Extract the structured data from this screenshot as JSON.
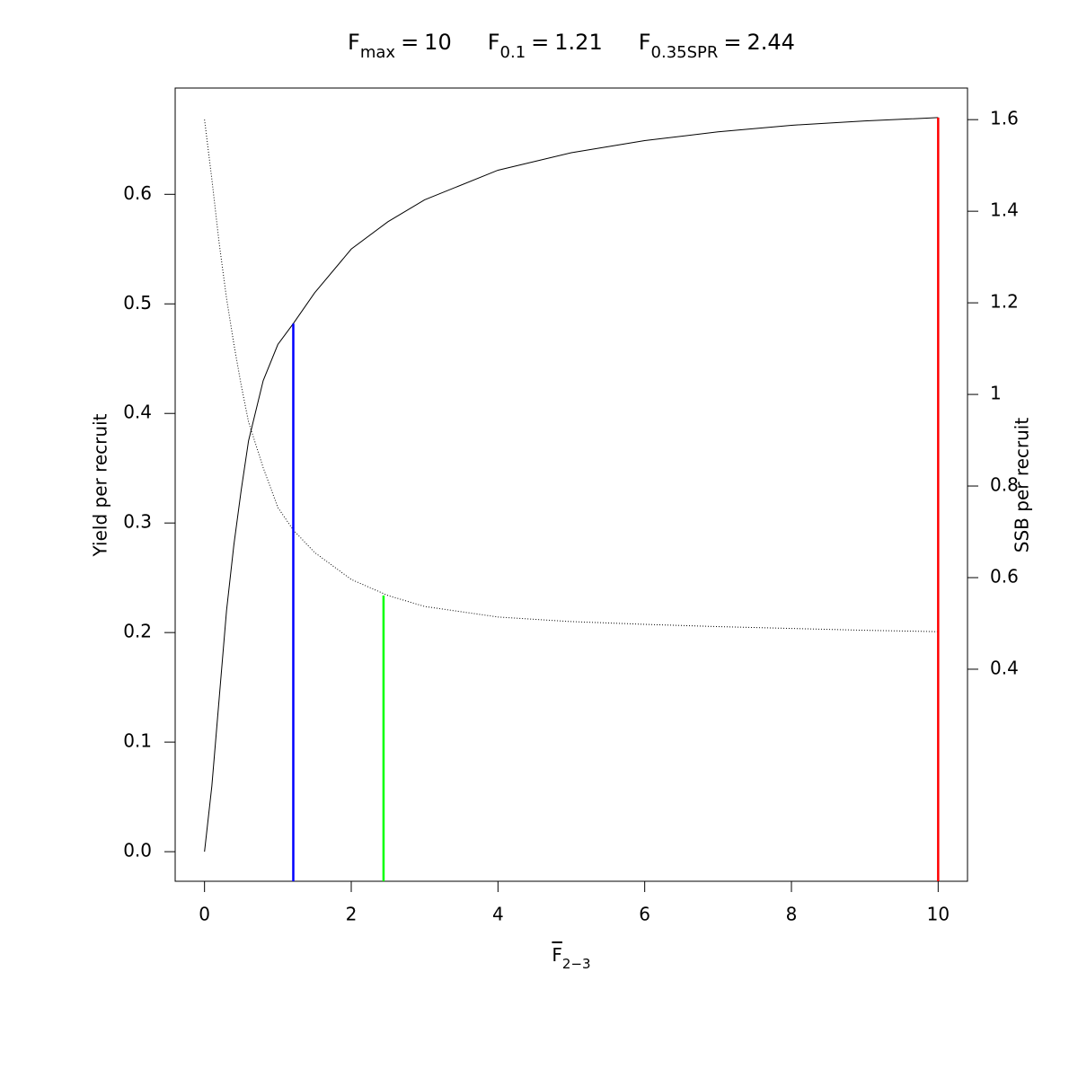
{
  "chart_data": {
    "type": "line",
    "reference_lines": [
      {
        "symbol": "F",
        "subscript": "max",
        "equals": "=",
        "x": 10,
        "color": "#ff0000",
        "top": 0.67
      },
      {
        "symbol": "F",
        "subscript": "0.1",
        "equals": "=",
        "x": 1.21,
        "color": "#0000ff",
        "top": 0.482
      },
      {
        "symbol": "F",
        "subscript": "0.35SPR",
        "equals": "=",
        "x": 2.44,
        "color": "#00ff00",
        "top": 0.561,
        "axis": "y2"
      }
    ],
    "xlabel": {
      "symbol": "F",
      "subscript": "2−3"
    },
    "ylabel": "Yield per recruit",
    "y2label": "SSB per recruit",
    "x": [
      0,
      0.1,
      0.2,
      0.3,
      0.4,
      0.5,
      0.6,
      0.8,
      1,
      1.21,
      1.5,
      2,
      2.5,
      3,
      4,
      5,
      6,
      7,
      8,
      9,
      10
    ],
    "series": [
      {
        "color": "#000000",
        "line_style": "solid",
        "values": [
          0,
          0.06,
          0.14,
          0.22,
          0.28,
          0.33,
          0.375,
          0.43,
          0.463,
          0.482,
          0.51,
          0.55,
          0.575,
          0.595,
          0.622,
          0.638,
          0.649,
          0.657,
          0.663,
          0.667,
          0.67
        ]
      },
      {
        "color": "#000000",
        "line_style": "dotted",
        "axis": "y2",
        "values": [
          1.6,
          1.47,
          1.33,
          1.21,
          1.11,
          1.02,
          0.94,
          0.84,
          0.753,
          0.704,
          0.655,
          0.596,
          0.561,
          0.537,
          0.514,
          0.504,
          0.498,
          0.493,
          0.489,
          0.485,
          0.482
        ]
      }
    ],
    "xlim": [
      -0.4,
      10.4
    ],
    "ylim": [
      -0.027,
      0.697
    ],
    "y2lim": [
      -0.063,
      1.669
    ],
    "xticks": [
      0,
      2,
      4,
      6,
      8,
      10
    ],
    "yticks": [
      {
        "value": 0,
        "label": "0.0"
      },
      0.1,
      0.2,
      0.3,
      0.4,
      0.5,
      0.6
    ],
    "y2ticks": [
      0.4,
      0.6,
      0.8,
      1,
      1.2,
      1.4,
      1.6
    ]
  }
}
